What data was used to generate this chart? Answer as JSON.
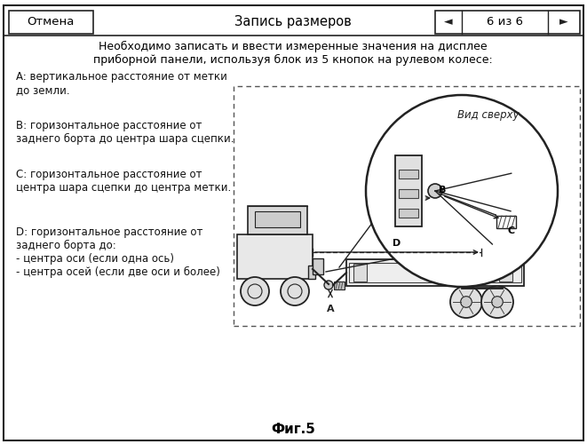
{
  "title": "Запись размеров",
  "cancel_btn": "Отмена",
  "nav_text": "6 из 6",
  "instruction": "Необходимо записать и ввести измеренные значения на дисплее\nприборной панели, используя блок из 5 кнопок на рулевом колесе:",
  "labels": [
    "A: вертикальное расстояние от метки\nдо земли.",
    "B: горизонтальное расстояние от\nзаднего борта до центра шара сцепки.",
    "C: горизонтальное расстояние от\nцентра шара сцепки до центра метки.",
    "D: горизонтальное расстояние от\nзаднего борта до:\n- центра оси (если одна ось)\n- центра осей (если две оси и более)"
  ],
  "diagram_label": "Вид сверху",
  "fig_label": "Фиг.5",
  "bg_color": "#f2f2f2",
  "box_color": "#ffffff",
  "border_color": "#333333"
}
